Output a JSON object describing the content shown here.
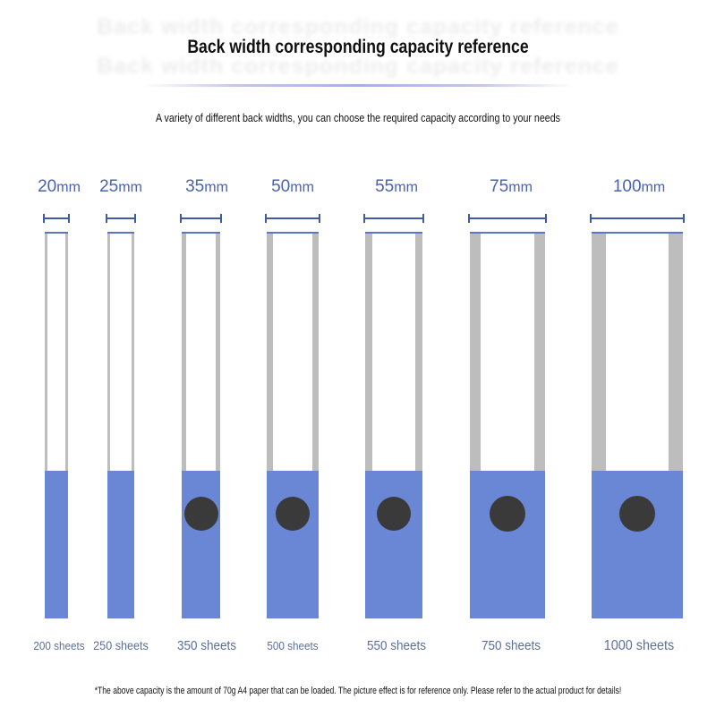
{
  "header": {
    "title": "Back width corresponding capacity reference",
    "subtitle": "A variety of different back widths, you can choose the required capacity according to your needs"
  },
  "binders": [
    {
      "width": "20",
      "unit": "mm",
      "capacity": "200 sheets",
      "has_ring_hole": false
    },
    {
      "width": "25",
      "unit": "mm",
      "capacity": "250 sheets",
      "has_ring_hole": false
    },
    {
      "width": "35",
      "unit": "mm",
      "capacity": "350 sheets",
      "has_ring_hole": true
    },
    {
      "width": "50",
      "unit": "mm",
      "capacity": "500 sheets",
      "has_ring_hole": true
    },
    {
      "width": "55",
      "unit": "mm",
      "capacity": "550 sheets",
      "has_ring_hole": true
    },
    {
      "width": "75",
      "unit": "mm",
      "capacity": "750 sheets",
      "has_ring_hole": true
    },
    {
      "width": "100",
      "unit": "mm",
      "capacity": "1000 sheets",
      "has_ring_hole": true
    }
  ],
  "footnote": "*The above capacity is the amount of 70g A4 paper that can be loaded. The picture effect is for reference only. Please refer to the actual product for details!",
  "colors": {
    "accent_blue": "#6a87d6",
    "dimension_blue": "#3f5aa8",
    "label_blue": "#4a62ae",
    "side_gray": "#bdbdbd",
    "ring_hole": "#3a3a3a"
  }
}
